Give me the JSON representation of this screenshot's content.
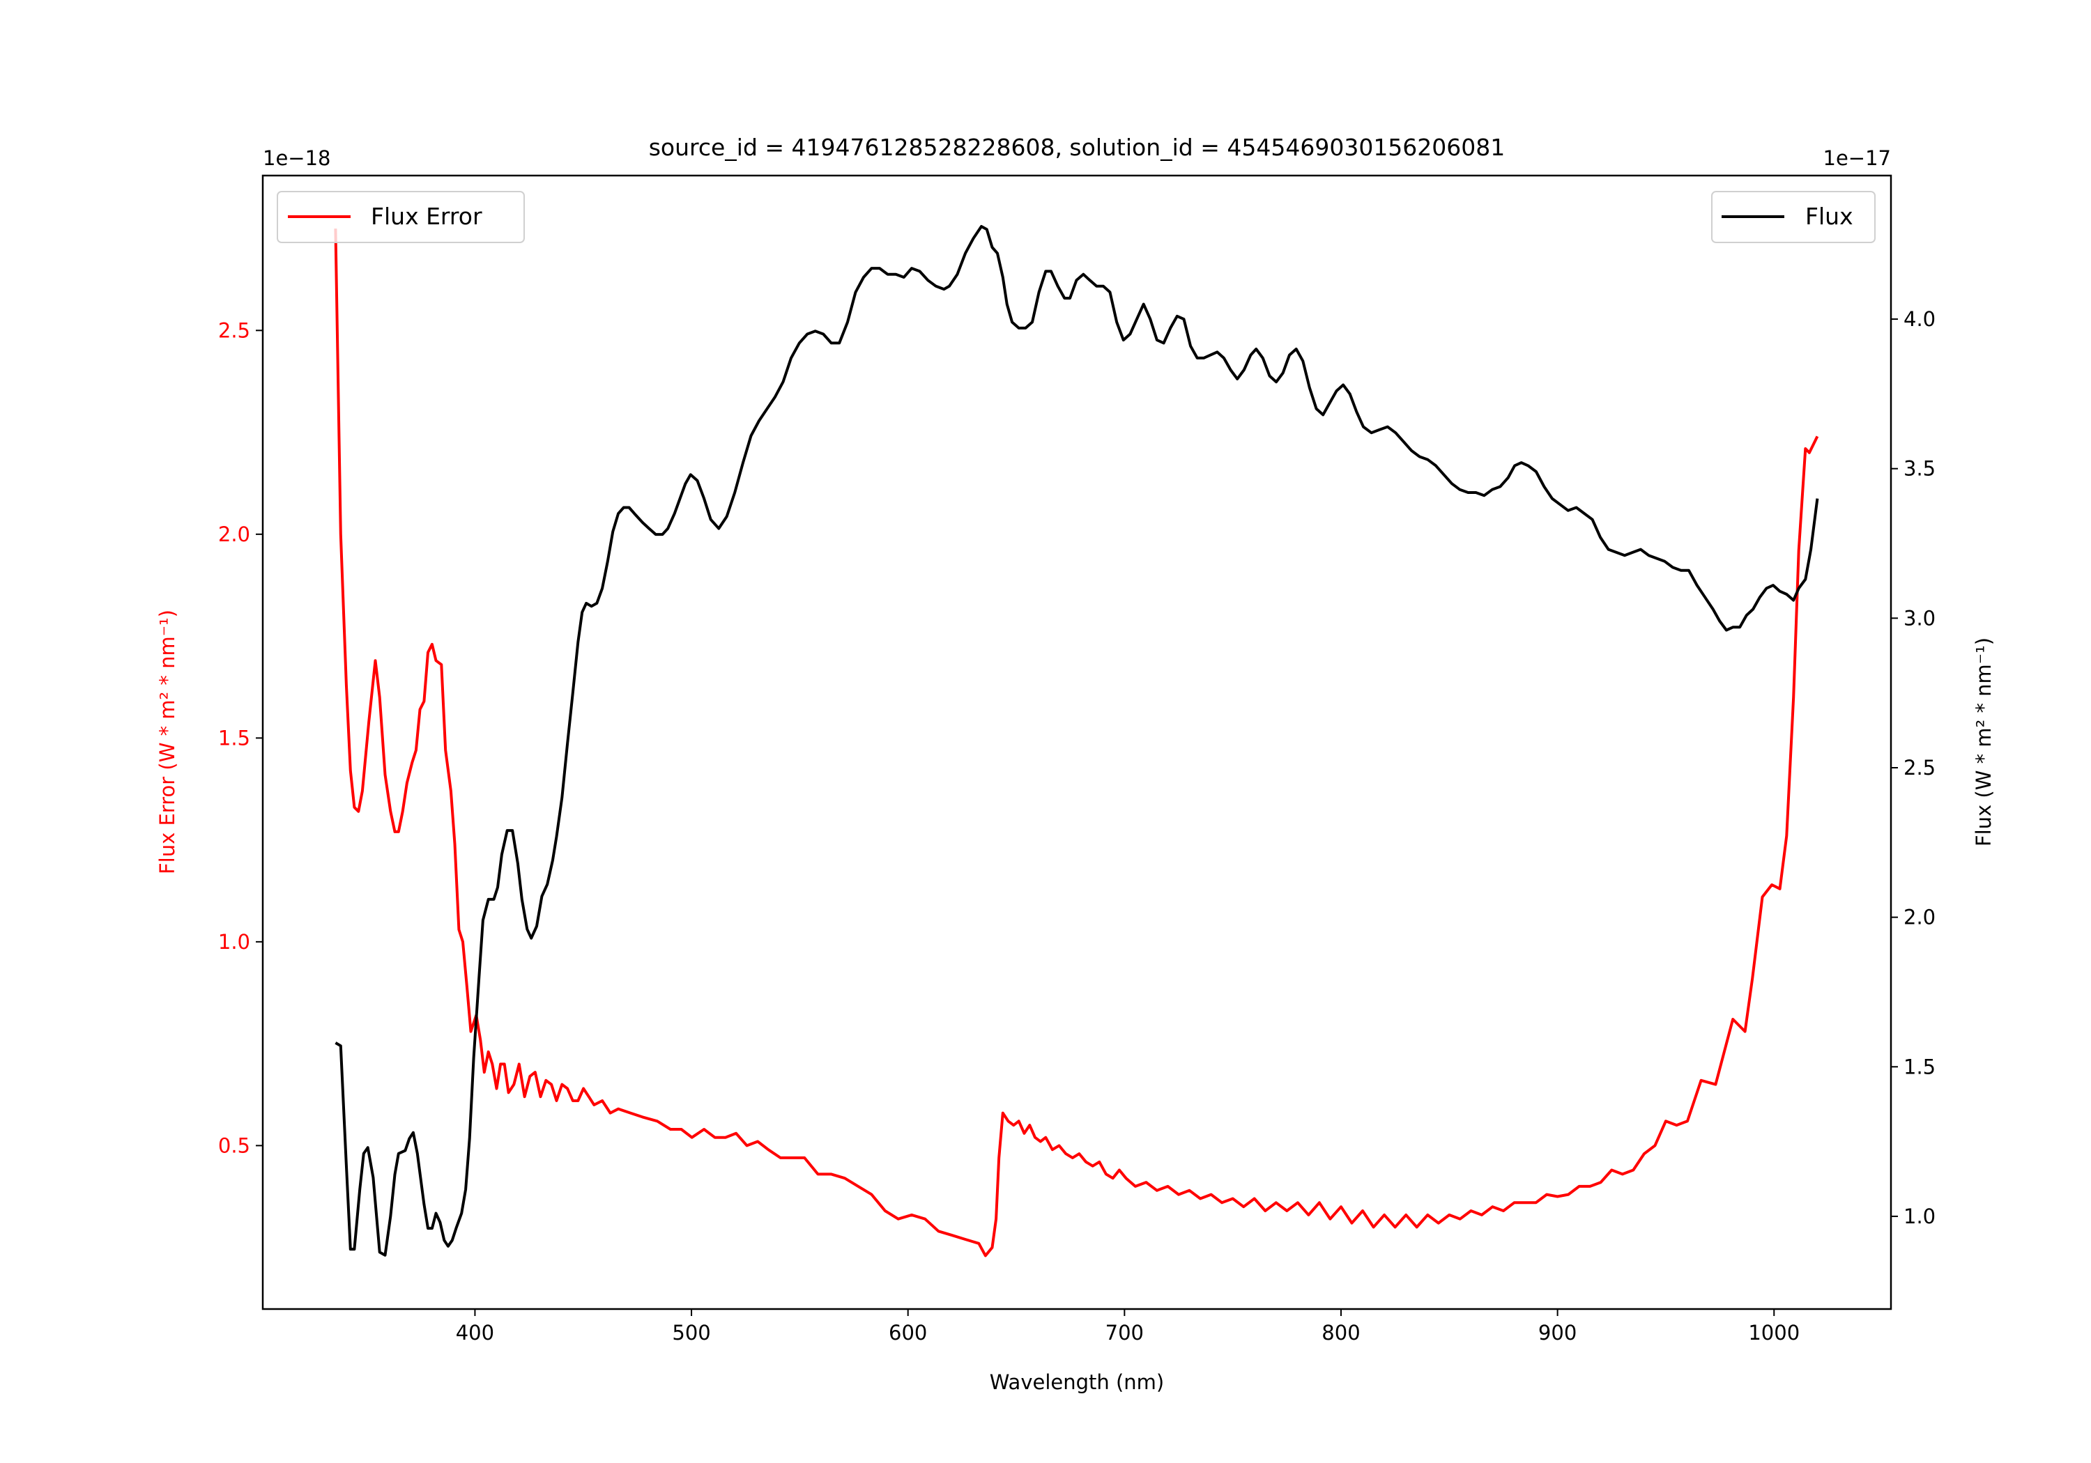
{
  "chart_data": {
    "type": "line",
    "title": "source_id = 419476128528228608, solution_id = 4545469030156206081",
    "xlabel": "Wavelength (nm)",
    "xlim": [
      302,
      1054
    ],
    "xticks": [
      400,
      500,
      600,
      700,
      800,
      900,
      1000
    ],
    "left_axis": {
      "label": "Flux Error (W * m² * nm⁻¹)",
      "offset_text": "1e−18",
      "color": "#ff0000",
      "ylim": [
        0.099,
        2.88
      ],
      "yticks": [
        0.5,
        1.0,
        1.5,
        2.0,
        2.5
      ]
    },
    "right_axis": {
      "label": "Flux (W * m² * nm⁻¹)",
      "offset_text": "1e−17",
      "color": "#000000",
      "ylim": [
        0.69,
        4.48
      ],
      "yticks": [
        1.0,
        1.5,
        2.0,
        2.5,
        3.0,
        3.5,
        4.0
      ]
    },
    "series": [
      {
        "name": "Flux Error",
        "axis": "left",
        "color": "#ff0000",
        "legend": "top-left",
        "x": [
          335.6,
          338,
          340.6,
          342.5,
          344.3,
          346.2,
          348,
          351,
          354,
          356,
          358.5,
          361,
          363,
          364.7,
          366.6,
          368.6,
          371,
          372.8,
          374.6,
          376.5,
          378.3,
          380.2,
          382,
          384.5,
          386.4,
          388.9,
          390.7,
          392.6,
          394.4,
          396.3,
          398.1,
          400.6,
          402.5,
          404.3,
          406.2,
          408,
          410,
          411.8,
          413.6,
          415.5,
          418,
          420.4,
          422.9,
          425.4,
          427.8,
          430.3,
          432.8,
          435.3,
          437.7,
          440.2,
          442.7,
          445.2,
          447.6,
          450.1,
          452.6,
          455,
          458.8,
          462.5,
          466.2,
          471.8,
          477.4,
          484.2,
          490.3,
          495.3,
          500.2,
          505.8,
          510.8,
          515.7,
          520.6,
          525.6,
          530.6,
          535.5,
          541.1,
          546,
          552.2,
          558.4,
          564.6,
          570.8,
          577,
          583.2,
          589.4,
          595.5,
          601.7,
          607.9,
          614.1,
          620.3,
          626.5,
          632.7,
          635.8,
          638.9,
          640.7,
          642,
          643.8,
          646.3,
          648.8,
          651.2,
          653.7,
          656.2,
          658.7,
          661.2,
          663.6,
          666.7,
          669.8,
          672.9,
          676,
          679.1,
          682.2,
          685.3,
          688.4,
          691.5,
          694.6,
          697.6,
          700.7,
          705,
          710,
          715,
          720,
          725,
          730,
          735,
          740,
          745,
          750,
          755,
          760,
          765,
          770,
          775,
          780,
          785,
          790,
          795,
          800,
          805,
          810,
          815,
          820,
          825,
          830,
          835,
          840,
          845,
          850,
          855,
          860,
          865,
          870,
          875,
          880,
          885,
          890,
          895,
          900,
          905,
          910,
          915,
          920,
          925,
          930,
          935,
          940,
          945,
          950,
          955,
          960,
          966.3,
          973,
          981,
          986.6,
          990,
          994.6,
          999,
          1002.7,
          1005.8,
          1009,
          1011.4,
          1014.5,
          1016.3,
          1020
        ],
        "y": [
          2.75,
          2.0,
          1.63,
          1.42,
          1.33,
          1.32,
          1.37,
          1.54,
          1.69,
          1.6,
          1.41,
          1.32,
          1.27,
          1.27,
          1.32,
          1.39,
          1.44,
          1.47,
          1.57,
          1.59,
          1.71,
          1.73,
          1.69,
          1.68,
          1.47,
          1.37,
          1.24,
          1.03,
          1.0,
          0.89,
          0.78,
          0.82,
          0.76,
          0.68,
          0.73,
          0.7,
          0.64,
          0.7,
          0.7,
          0.63,
          0.65,
          0.7,
          0.62,
          0.67,
          0.68,
          0.62,
          0.66,
          0.65,
          0.61,
          0.65,
          0.64,
          0.61,
          0.61,
          0.64,
          0.62,
          0.6,
          0.61,
          0.58,
          0.59,
          0.58,
          0.57,
          0.56,
          0.54,
          0.54,
          0.52,
          0.54,
          0.52,
          0.52,
          0.53,
          0.5,
          0.51,
          0.49,
          0.47,
          0.47,
          0.47,
          0.43,
          0.43,
          0.42,
          0.4,
          0.38,
          0.34,
          0.32,
          0.33,
          0.32,
          0.29,
          0.28,
          0.27,
          0.26,
          0.23,
          0.25,
          0.32,
          0.47,
          0.58,
          0.56,
          0.55,
          0.56,
          0.53,
          0.55,
          0.52,
          0.51,
          0.52,
          0.49,
          0.5,
          0.48,
          0.47,
          0.48,
          0.46,
          0.45,
          0.46,
          0.43,
          0.42,
          0.44,
          0.42,
          0.4,
          0.41,
          0.39,
          0.4,
          0.38,
          0.39,
          0.37,
          0.38,
          0.36,
          0.37,
          0.35,
          0.37,
          0.34,
          0.36,
          0.34,
          0.36,
          0.33,
          0.36,
          0.32,
          0.35,
          0.31,
          0.34,
          0.3,
          0.33,
          0.3,
          0.33,
          0.3,
          0.33,
          0.31,
          0.33,
          0.32,
          0.34,
          0.33,
          0.35,
          0.34,
          0.36,
          0.36,
          0.36,
          0.38,
          0.375,
          0.38,
          0.4,
          0.4,
          0.41,
          0.44,
          0.43,
          0.44,
          0.48,
          0.5,
          0.56,
          0.55,
          0.56,
          0.66,
          0.65,
          0.81,
          0.78,
          0.91,
          1.11,
          1.14,
          1.13,
          1.26,
          1.6,
          1.96,
          2.21,
          2.2,
          2.24
        ]
      },
      {
        "name": "Flux",
        "axis": "right",
        "color": "#000000",
        "legend": "top-right",
        "x": [
          335.6,
          338,
          340.6,
          342.5,
          344.3,
          346.8,
          348.6,
          350.5,
          353,
          356,
          358.5,
          361,
          363,
          364.7,
          367.8,
          369.7,
          371.5,
          373.4,
          376.5,
          378.3,
          380.2,
          382,
          383.9,
          385.8,
          387.6,
          389.5,
          391.3,
          393.8,
          395.7,
          397.5,
          399.4,
          401.9,
          403.7,
          406.2,
          408.7,
          410.5,
          412.4,
          414.9,
          417.3,
          419.8,
          421.7,
          424.1,
          426,
          428.5,
          430.9,
          433.4,
          435.9,
          437.7,
          440.2,
          442.7,
          445.2,
          447.6,
          449.5,
          451.4,
          453.8,
          456.3,
          458.8,
          461.3,
          463.7,
          466.2,
          468.7,
          471.2,
          473.6,
          477.4,
          480.4,
          483.5,
          486.6,
          489.1,
          492.2,
          494.7,
          497.2,
          499.6,
          502.7,
          505.8,
          508.9,
          512.6,
          516.3,
          520,
          523.8,
          527.5,
          531.2,
          534.9,
          538.6,
          542.3,
          546,
          549.8,
          553.5,
          557.2,
          560.9,
          564.6,
          568.3,
          572.1,
          575.8,
          579.5,
          583.2,
          586.9,
          590.6,
          594.4,
          598.1,
          601.7,
          605.4,
          609.2,
          612.9,
          616.6,
          619.1,
          622.8,
          626.5,
          630.2,
          633.9,
          636.4,
          638.9,
          641.3,
          643.8,
          645.7,
          648.1,
          651.2,
          654.3,
          657.4,
          660.5,
          663.6,
          666.1,
          669.2,
          672.3,
          674.8,
          677.8,
          681,
          684,
          687.1,
          690.2,
          693.3,
          696.4,
          699.5,
          702.6,
          705.7,
          708.8,
          711.9,
          715,
          718.1,
          721.2,
          724.3,
          727.4,
          730.5,
          733.6,
          736.6,
          739.7,
          742.8,
          745.9,
          749,
          752.1,
          755.2,
          758.3,
          760.8,
          763.9,
          767,
          770.1,
          773.2,
          776.2,
          779.3,
          782.4,
          785.5,
          788.6,
          791.7,
          794.8,
          797.9,
          801,
          804.1,
          807.2,
          810.3,
          814,
          817.7,
          821.5,
          825.2,
          828.9,
          832.6,
          836.3,
          840.1,
          843.8,
          847.5,
          851.2,
          854.9,
          858.7,
          862.3,
          866.1,
          869.8,
          873.5,
          877.2,
          880.2,
          883.3,
          886.4,
          890.1,
          893.8,
          897.5,
          901.2,
          904.9,
          908.7,
          912.4,
          916.1,
          919.8,
          923.5,
          927.2,
          931,
          934.7,
          938.4,
          942.1,
          945.8,
          949.5,
          953.2,
          957,
          960.6,
          964.4,
          968.1,
          971.8,
          974.9,
          978,
          981.1,
          984.2,
          987.3,
          990.3,
          993.4,
          996.5,
          999.6,
          1002.7,
          1005.8,
          1009,
          1011.4,
          1014.5,
          1017,
          1020
        ],
        "y": [
          1.58,
          1.57,
          1.17,
          0.89,
          0.89,
          1.09,
          1.21,
          1.23,
          1.13,
          0.88,
          0.87,
          1.0,
          1.14,
          1.21,
          1.22,
          1.26,
          1.28,
          1.21,
          1.04,
          0.96,
          0.96,
          1.01,
          0.98,
          0.92,
          0.9,
          0.92,
          0.96,
          1.01,
          1.09,
          1.26,
          1.53,
          1.8,
          1.99,
          2.06,
          2.06,
          2.1,
          2.21,
          2.29,
          2.29,
          2.18,
          2.06,
          1.96,
          1.93,
          1.97,
          2.07,
          2.11,
          2.19,
          2.27,
          2.4,
          2.58,
          2.75,
          2.92,
          3.02,
          3.05,
          3.04,
          3.05,
          3.1,
          3.19,
          3.29,
          3.35,
          3.37,
          3.37,
          3.35,
          3.32,
          3.3,
          3.28,
          3.28,
          3.3,
          3.35,
          3.4,
          3.45,
          3.48,
          3.46,
          3.4,
          3.33,
          3.3,
          3.34,
          3.42,
          3.52,
          3.61,
          3.66,
          3.7,
          3.74,
          3.79,
          3.87,
          3.92,
          3.95,
          3.96,
          3.95,
          3.92,
          3.92,
          3.99,
          4.09,
          4.14,
          4.17,
          4.17,
          4.15,
          4.15,
          4.14,
          4.17,
          4.16,
          4.13,
          4.11,
          4.1,
          4.11,
          4.15,
          4.22,
          4.27,
          4.31,
          4.3,
          4.24,
          4.22,
          4.14,
          4.05,
          3.99,
          3.97,
          3.97,
          3.99,
          4.09,
          4.16,
          4.16,
          4.11,
          4.07,
          4.07,
          4.13,
          4.15,
          4.13,
          4.11,
          4.11,
          4.09,
          3.99,
          3.93,
          3.95,
          4.0,
          4.05,
          4.0,
          3.93,
          3.92,
          3.97,
          4.01,
          4.0,
          3.91,
          3.87,
          3.87,
          3.88,
          3.89,
          3.87,
          3.83,
          3.8,
          3.83,
          3.88,
          3.9,
          3.87,
          3.81,
          3.79,
          3.82,
          3.88,
          3.9,
          3.86,
          3.77,
          3.7,
          3.68,
          3.72,
          3.76,
          3.78,
          3.75,
          3.69,
          3.64,
          3.62,
          3.63,
          3.64,
          3.62,
          3.59,
          3.56,
          3.54,
          3.53,
          3.51,
          3.48,
          3.45,
          3.43,
          3.42,
          3.42,
          3.41,
          3.43,
          3.44,
          3.47,
          3.51,
          3.52,
          3.51,
          3.49,
          3.44,
          3.4,
          3.38,
          3.36,
          3.37,
          3.35,
          3.33,
          3.27,
          3.23,
          3.22,
          3.21,
          3.22,
          3.23,
          3.21,
          3.2,
          3.19,
          3.17,
          3.16,
          3.16,
          3.11,
          3.07,
          3.03,
          2.99,
          2.96,
          2.97,
          2.97,
          3.01,
          3.03,
          3.07,
          3.1,
          3.11,
          3.09,
          3.08,
          3.06,
          3.1,
          3.13,
          3.23,
          3.4
        ]
      }
    ]
  }
}
